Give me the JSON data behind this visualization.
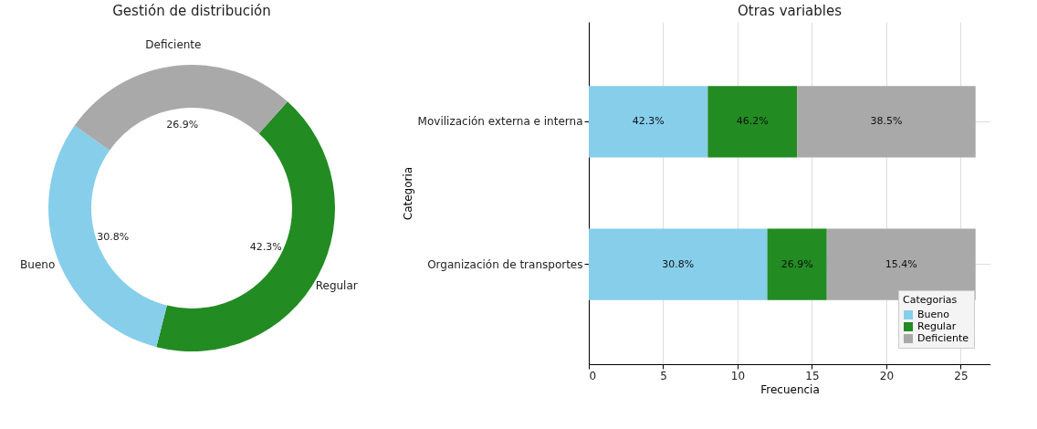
{
  "chart_data": [
    {
      "type": "donut",
      "title": "Gestión de distribución",
      "categories": [
        "Regular",
        "Bueno",
        "Deficiente"
      ],
      "values": [
        42.3,
        30.8,
        26.9
      ],
      "colors": [
        "#228b22",
        "#87ceeb",
        "#a9a9a9"
      ],
      "value_labels": [
        "42.3%",
        "30.8%",
        "26.9%"
      ]
    },
    {
      "type": "bar",
      "orientation": "horizontal",
      "stacked": true,
      "title": "Otras variables",
      "xlabel": "Frecuencia",
      "ylabel": "Categoria",
      "legend_title": "Categorias",
      "legend": "bottom right",
      "grid": true,
      "categories": [
        "Movilización externa e interna",
        "Organización de transportes"
      ],
      "xlim": [
        0,
        27
      ],
      "xticks": [
        0,
        5,
        10,
        15,
        20,
        25
      ],
      "series": [
        {
          "name": "Bueno",
          "color": "#87ceeb",
          "values": [
            8,
            12
          ]
        },
        {
          "name": "Regular",
          "color": "#228b22",
          "values": [
            6,
            4
          ]
        },
        {
          "name": "Deficiente",
          "color": "#a9a9a9",
          "values": [
            12,
            10
          ]
        }
      ],
      "annotations": [
        "42.3%",
        "46.2%",
        "38.5%",
        "30.8%",
        "26.9%",
        "15.4%"
      ]
    }
  ]
}
